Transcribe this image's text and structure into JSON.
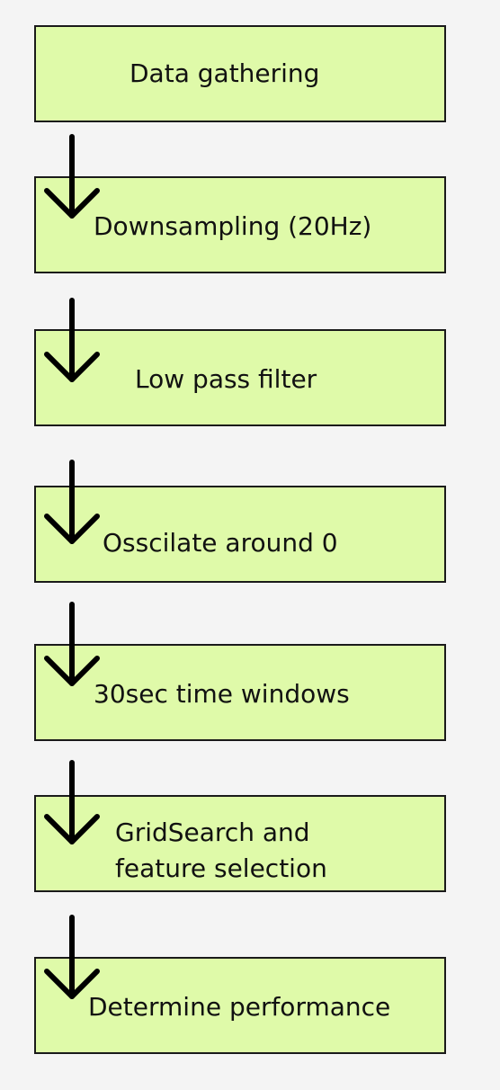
{
  "diagram": {
    "steps": [
      {
        "text": "Data gathering"
      },
      {
        "text": "Downsampling (20Hz)"
      },
      {
        "text": "Low pass filter"
      },
      {
        "text": "Osscilate around 0"
      },
      {
        "text": "30sec time windows"
      },
      {
        "text": "GridSearch and",
        "text2": "feature selection"
      },
      {
        "text": "Determine performance"
      }
    ]
  }
}
